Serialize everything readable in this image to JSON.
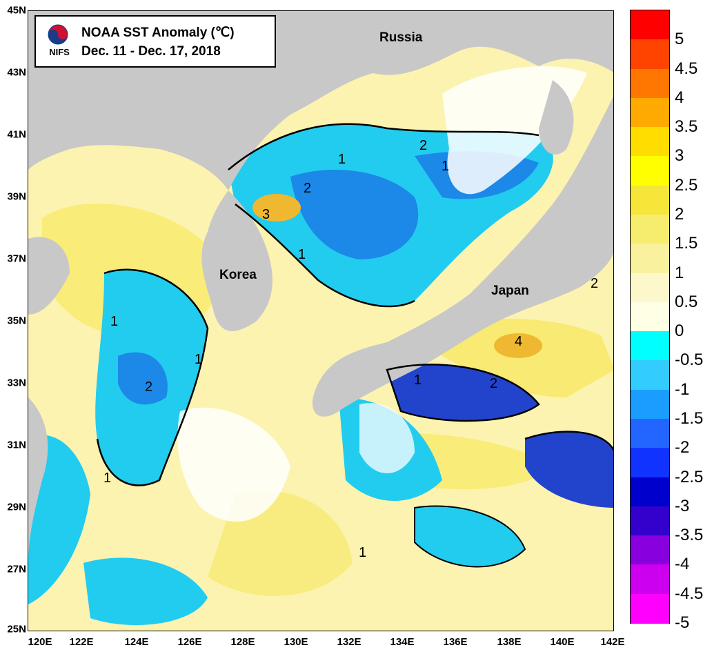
{
  "title": {
    "logo_text": "NIFS",
    "line1": "NOAA SST Anomaly (℃)",
    "line2": "Dec. 11 - Dec. 17, 2018"
  },
  "regions": {
    "russia": "Russia",
    "korea": "Korea",
    "japan": "Japan"
  },
  "axes": {
    "lat_ticks": [
      "45N",
      "43N",
      "41N",
      "39N",
      "37N",
      "35N",
      "33N",
      "31N",
      "29N",
      "27N",
      "25N"
    ],
    "lon_ticks": [
      "120E",
      "122E",
      "124E",
      "126E",
      "128E",
      "130E",
      "132E",
      "134E",
      "136E",
      "138E",
      "140E",
      "142E"
    ]
  },
  "contour_labels": [
    "2",
    "1",
    "2",
    "3",
    "1",
    "1",
    "1",
    "1",
    "2",
    "1",
    "2",
    "4",
    "2",
    "1",
    "1"
  ],
  "colorbar": {
    "labels": [
      "5",
      "4.5",
      "4",
      "3.5",
      "3",
      "2.5",
      "2",
      "1.5",
      "1",
      "0.5",
      "0",
      "-0.5",
      "-1",
      "-1.5",
      "-2",
      "-2.5",
      "-3",
      "-3.5",
      "-4",
      "-4.5",
      "-5"
    ],
    "colors": [
      "#ff0000",
      "#ff4400",
      "#ff7700",
      "#ffaa00",
      "#ffdd00",
      "#ffff00",
      "#f6e63a",
      "#f6ec6e",
      "#f9f19e",
      "#fcf8cc",
      "#ffffe6",
      "#00ffff",
      "#33ccff",
      "#1a9dff",
      "#2266ff",
      "#1133ff",
      "#0000cc",
      "#3300cc",
      "#8800dd",
      "#cc00ee",
      "#ff00ff"
    ]
  },
  "colors": {
    "land": "#c8c8c8",
    "positive_light": "#fcf3b0",
    "positive_mid": "#f5e54a",
    "positive_strong": "#f0b830",
    "negative_light": "#22ccee",
    "negative_mid": "#1c88e8",
    "negative_strong": "#2244cc",
    "no_data": "#ffffff"
  }
}
